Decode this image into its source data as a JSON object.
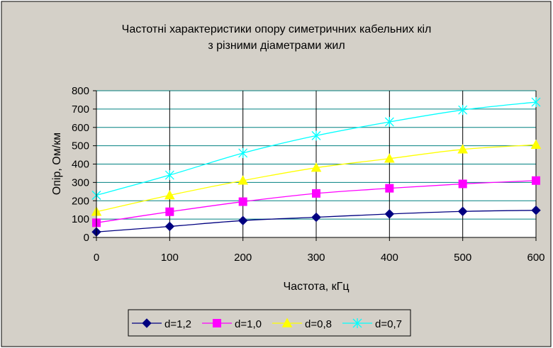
{
  "chart_data": {
    "type": "line",
    "title": "Частотні характеристики опору симетричних кабельних кіл",
    "subtitle": "з різними діаметрами жил",
    "xlabel": "Частота, кГц",
    "ylabel": "Опір, Ом/км",
    "x": [
      0,
      100,
      200,
      300,
      400,
      500,
      600
    ],
    "xlim": [
      0,
      600
    ],
    "ylim": [
      0,
      800
    ],
    "xticks": [
      "0",
      "100",
      "200",
      "300",
      "400",
      "500",
      "600"
    ],
    "yticks": [
      "0",
      "100",
      "200",
      "300",
      "400",
      "500",
      "600",
      "700",
      "800"
    ],
    "grid": true,
    "legend_position": "bottom",
    "series": [
      {
        "name": "d=1,2",
        "values": [
          30,
          60,
          92,
          110,
          128,
          142,
          148
        ],
        "color": "#000080",
        "marker": "diamond"
      },
      {
        "name": "d=1,0",
        "values": [
          80,
          140,
          195,
          240,
          268,
          292,
          310
        ],
        "color": "#ff00ff",
        "marker": "square"
      },
      {
        "name": "d=0,8",
        "values": [
          140,
          230,
          310,
          380,
          430,
          480,
          505
        ],
        "color": "#ffff00",
        "marker": "triangle"
      },
      {
        "name": "d=0,7",
        "values": [
          230,
          340,
          460,
          555,
          630,
          695,
          738
        ],
        "color": "#00ffff",
        "marker": "star"
      }
    ],
    "colors": {
      "chart_area_bg": "#d4d0c8",
      "plot_area_bg": "#ffffff",
      "gridline": "#008080",
      "axis": "#000000"
    }
  }
}
